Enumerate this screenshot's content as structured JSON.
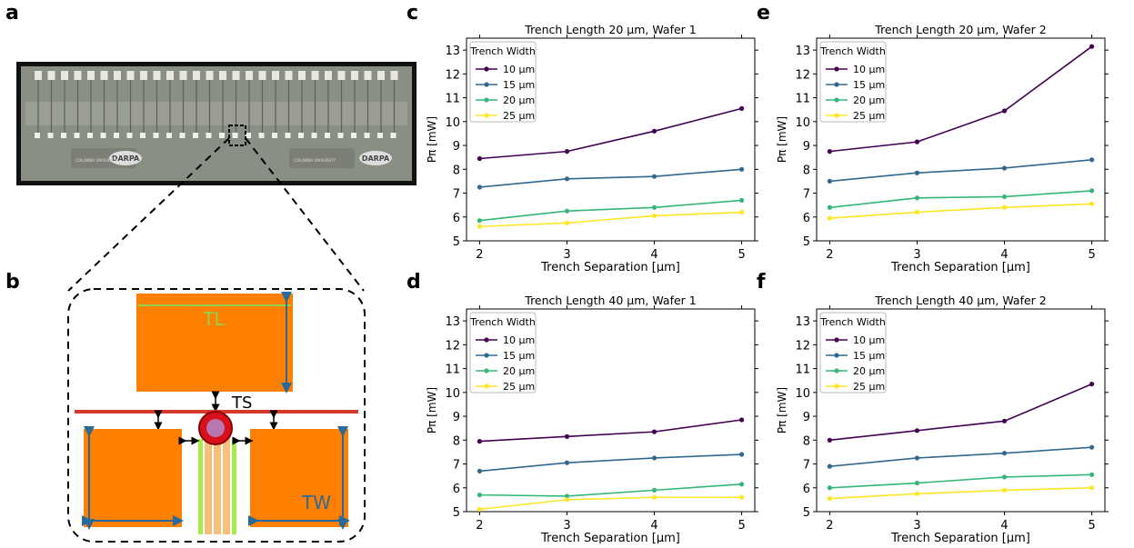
{
  "panels": {
    "a": "a",
    "b": "b",
    "c": "c",
    "d": "d",
    "e": "e",
    "f": "f"
  },
  "chip": {
    "logo_text": "DARPA",
    "university_text": "COLUMBIA UNIVERSITY"
  },
  "diagram": {
    "tl_label": "TL",
    "ts_label": "TS",
    "tw_label": "TW"
  },
  "chart_data": [
    {
      "panel": "c",
      "type": "line",
      "title": "Trench Length 20 µm, Wafer 1",
      "xlabel": "Trench Separation [µm]",
      "ylabel": "Pπ [mW]",
      "x": [
        2,
        3,
        4,
        5
      ],
      "xlim": [
        1.85,
        5.15
      ],
      "ylim": [
        5,
        13.5
      ],
      "yticks": [
        5,
        6,
        7,
        8,
        9,
        10,
        11,
        12,
        13
      ],
      "legend_title": "Trench Width",
      "legend_position": "upper-left",
      "series": [
        {
          "name": "10 µm",
          "color": "#440154",
          "values": [
            8.45,
            8.75,
            9.6,
            10.55
          ]
        },
        {
          "name": "15 µm",
          "color": "#31688e",
          "values": [
            7.25,
            7.6,
            7.7,
            8.0
          ]
        },
        {
          "name": "20 µm",
          "color": "#35b779",
          "values": [
            5.85,
            6.25,
            6.4,
            6.7
          ]
        },
        {
          "name": "25 µm",
          "color": "#fde725",
          "values": [
            5.6,
            5.75,
            6.05,
            6.2
          ]
        }
      ]
    },
    {
      "panel": "d",
      "type": "line",
      "title": "Trench Length 40 µm, Wafer 1",
      "xlabel": "Trench Separation [µm]",
      "ylabel": "Pπ [mW]",
      "x": [
        2,
        3,
        4,
        5
      ],
      "xlim": [
        1.85,
        5.15
      ],
      "ylim": [
        5,
        13.5
      ],
      "yticks": [
        5,
        6,
        7,
        8,
        9,
        10,
        11,
        12,
        13
      ],
      "legend_title": "Trench Width",
      "legend_position": "upper-left",
      "series": [
        {
          "name": "10 µm",
          "color": "#440154",
          "values": [
            7.95,
            8.15,
            8.35,
            8.85
          ]
        },
        {
          "name": "15 µm",
          "color": "#31688e",
          "values": [
            6.7,
            7.05,
            7.25,
            7.4
          ]
        },
        {
          "name": "20 µm",
          "color": "#35b779",
          "values": [
            5.7,
            5.65,
            5.9,
            6.15
          ]
        },
        {
          "name": "25 µm",
          "color": "#fde725",
          "values": [
            5.1,
            5.5,
            5.6,
            5.6
          ]
        }
      ]
    },
    {
      "panel": "e",
      "type": "line",
      "title": "Trench Length 20 µm, Wafer 2",
      "xlabel": "Trench Separation [µm]",
      "ylabel": "Pπ [mW]",
      "x": [
        2,
        3,
        4,
        5
      ],
      "xlim": [
        1.85,
        5.15
      ],
      "ylim": [
        5,
        13.5
      ],
      "yticks": [
        5,
        6,
        7,
        8,
        9,
        10,
        11,
        12,
        13
      ],
      "legend_title": "Trench Width",
      "legend_position": "upper-left",
      "series": [
        {
          "name": "10 µm",
          "color": "#440154",
          "values": [
            8.75,
            9.15,
            10.45,
            13.15
          ]
        },
        {
          "name": "15 µm",
          "color": "#31688e",
          "values": [
            7.5,
            7.85,
            8.05,
            8.4
          ]
        },
        {
          "name": "20 µm",
          "color": "#35b779",
          "values": [
            6.4,
            6.8,
            6.85,
            7.1
          ]
        },
        {
          "name": "25 µm",
          "color": "#fde725",
          "values": [
            5.95,
            6.2,
            6.4,
            6.55
          ]
        }
      ]
    },
    {
      "panel": "f",
      "type": "line",
      "title": "Trench Length 40 µm, Wafer 2",
      "xlabel": "Trench Separation [µm]",
      "ylabel": "Pπ [mW]",
      "x": [
        2,
        3,
        4,
        5
      ],
      "xlim": [
        1.85,
        5.15
      ],
      "ylim": [
        5,
        13.5
      ],
      "yticks": [
        5,
        6,
        7,
        8,
        9,
        10,
        11,
        12,
        13
      ],
      "legend_title": "Trench Width",
      "legend_position": "upper-left",
      "series": [
        {
          "name": "10 µm",
          "color": "#440154",
          "values": [
            8.0,
            8.4,
            8.8,
            10.35
          ]
        },
        {
          "name": "15 µm",
          "color": "#31688e",
          "values": [
            6.9,
            7.25,
            7.45,
            7.7
          ]
        },
        {
          "name": "20 µm",
          "color": "#35b779",
          "values": [
            6.0,
            6.2,
            6.45,
            6.55
          ]
        },
        {
          "name": "25 µm",
          "color": "#fde725",
          "values": [
            5.55,
            5.75,
            5.9,
            6.0
          ]
        }
      ]
    }
  ]
}
